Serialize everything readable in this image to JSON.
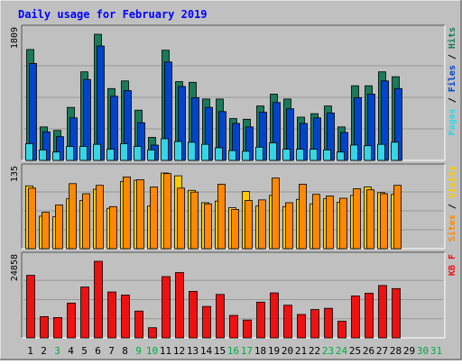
{
  "title": "Daily usage for February 2019",
  "colors": {
    "background": "#c0c0c0",
    "title": "#0000ff",
    "hits": "#1a7a5a",
    "files": "#0044cc",
    "pages": "#33d6e6",
    "visits": "#ffcc00",
    "sites": "#ff8800",
    "kbytes": "#ee1111",
    "weekday_label": "#006600",
    "weekend_label": "#00aa44"
  },
  "chart_data": [
    {
      "type": "bar",
      "panel": "hits-files-pages",
      "title": "",
      "ylabel": "Pages / Files / Hits",
      "y_max_label": "1809",
      "ylim": [
        0,
        1809
      ],
      "categories": [
        "1",
        "2",
        "3",
        "4",
        "5",
        "6",
        "7",
        "8",
        "9",
        "10",
        "11",
        "12",
        "13",
        "14",
        "15",
        "16",
        "17",
        "18",
        "19",
        "20",
        "21",
        "22",
        "23",
        "24",
        "25",
        "26",
        "27",
        "28"
      ],
      "series": [
        {
          "name": "Hits",
          "values": [
            1590,
            480,
            430,
            760,
            1270,
            1809,
            1030,
            1140,
            720,
            330,
            1580,
            1130,
            1120,
            880,
            880,
            600,
            590,
            780,
            950,
            880,
            620,
            670,
            780,
            480,
            1070,
            1070,
            1270,
            1200
          ]
        },
        {
          "name": "Files",
          "values": [
            1390,
            410,
            340,
            610,
            1160,
            1640,
            920,
            1000,
            540,
            220,
            1410,
            1060,
            900,
            760,
            700,
            530,
            480,
            690,
            830,
            740,
            530,
            610,
            680,
            400,
            900,
            950,
            1140,
            1030
          ]
        },
        {
          "name": "Pages",
          "values": [
            240,
            150,
            120,
            200,
            200,
            230,
            160,
            240,
            200,
            150,
            310,
            270,
            260,
            230,
            180,
            140,
            130,
            190,
            250,
            160,
            160,
            160,
            150,
            120,
            220,
            210,
            230,
            260
          ]
        }
      ]
    },
    {
      "type": "bar",
      "panel": "visits-sites",
      "title": "",
      "ylabel": "Sites / Visits",
      "y_max_label": "135",
      "ylim": [
        0,
        135
      ],
      "categories": [
        "1",
        "2",
        "3",
        "4",
        "5",
        "6",
        "7",
        "8",
        "9",
        "10",
        "11",
        "12",
        "13",
        "14",
        "15",
        "16",
        "17",
        "18",
        "19",
        "20",
        "21",
        "22",
        "23",
        "24",
        "25",
        "26",
        "27",
        "28"
      ],
      "series": [
        {
          "name": "Visits",
          "values": [
            112,
            58,
            57,
            89,
            86,
            106,
            72,
            120,
            122,
            76,
            135,
            130,
            104,
            82,
            85,
            73,
            102,
            76,
            95,
            75,
            88,
            80,
            89,
            83,
            95,
            110,
            100,
            97
          ]
        },
        {
          "name": "Sites",
          "values": [
            108,
            65,
            78,
            116,
            98,
            113,
            75,
            128,
            123,
            110,
            134,
            108,
            101,
            80,
            115,
            70,
            86,
            87,
            126,
            82,
            115,
            97,
            94,
            90,
            107,
            105,
            98,
            113
          ]
        }
      ]
    },
    {
      "type": "bar",
      "panel": "kbytes",
      "title": "",
      "ylabel": "KB F",
      "y_max_label": "24858",
      "ylim": [
        0,
        24858
      ],
      "categories": [
        "1",
        "2",
        "3",
        "4",
        "5",
        "6",
        "7",
        "8",
        "9",
        "10",
        "11",
        "12",
        "13",
        "14",
        "15",
        "16",
        "17",
        "18",
        "19",
        "20",
        "21",
        "22",
        "23",
        "24",
        "25",
        "26",
        "27",
        "28"
      ],
      "series": [
        {
          "name": "KBytes",
          "values": [
            20300,
            6900,
            6600,
            11300,
            16500,
            24858,
            14900,
            13900,
            8700,
            3300,
            19900,
            21200,
            15100,
            10200,
            14100,
            7300,
            5800,
            11600,
            14600,
            10600,
            7600,
            9200,
            9600,
            5400,
            13600,
            14500,
            17000,
            16000
          ]
        }
      ]
    }
  ],
  "x_axis": {
    "days": [
      {
        "label": "1",
        "weekend": false
      },
      {
        "label": "2",
        "weekend": false
      },
      {
        "label": "3",
        "weekend": true
      },
      {
        "label": "4",
        "weekend": false
      },
      {
        "label": "5",
        "weekend": false
      },
      {
        "label": "6",
        "weekend": false
      },
      {
        "label": "7",
        "weekend": false
      },
      {
        "label": "8",
        "weekend": false
      },
      {
        "label": "9",
        "weekend": true
      },
      {
        "label": "10",
        "weekend": true
      },
      {
        "label": "11",
        "weekend": false
      },
      {
        "label": "12",
        "weekend": false
      },
      {
        "label": "13",
        "weekend": false
      },
      {
        "label": "14",
        "weekend": false
      },
      {
        "label": "15",
        "weekend": false
      },
      {
        "label": "16",
        "weekend": true
      },
      {
        "label": "17",
        "weekend": true
      },
      {
        "label": "18",
        "weekend": false
      },
      {
        "label": "19",
        "weekend": false
      },
      {
        "label": "20",
        "weekend": false
      },
      {
        "label": "21",
        "weekend": false
      },
      {
        "label": "22",
        "weekend": false
      },
      {
        "label": "23",
        "weekend": true
      },
      {
        "label": "24",
        "weekend": true
      },
      {
        "label": "25",
        "weekend": false
      },
      {
        "label": "26",
        "weekend": false
      },
      {
        "label": "27",
        "weekend": false
      },
      {
        "label": "28",
        "weekend": false
      },
      {
        "label": "29",
        "weekend": false
      },
      {
        "label": "30",
        "weekend": true
      },
      {
        "label": "31",
        "weekend": true
      }
    ]
  }
}
